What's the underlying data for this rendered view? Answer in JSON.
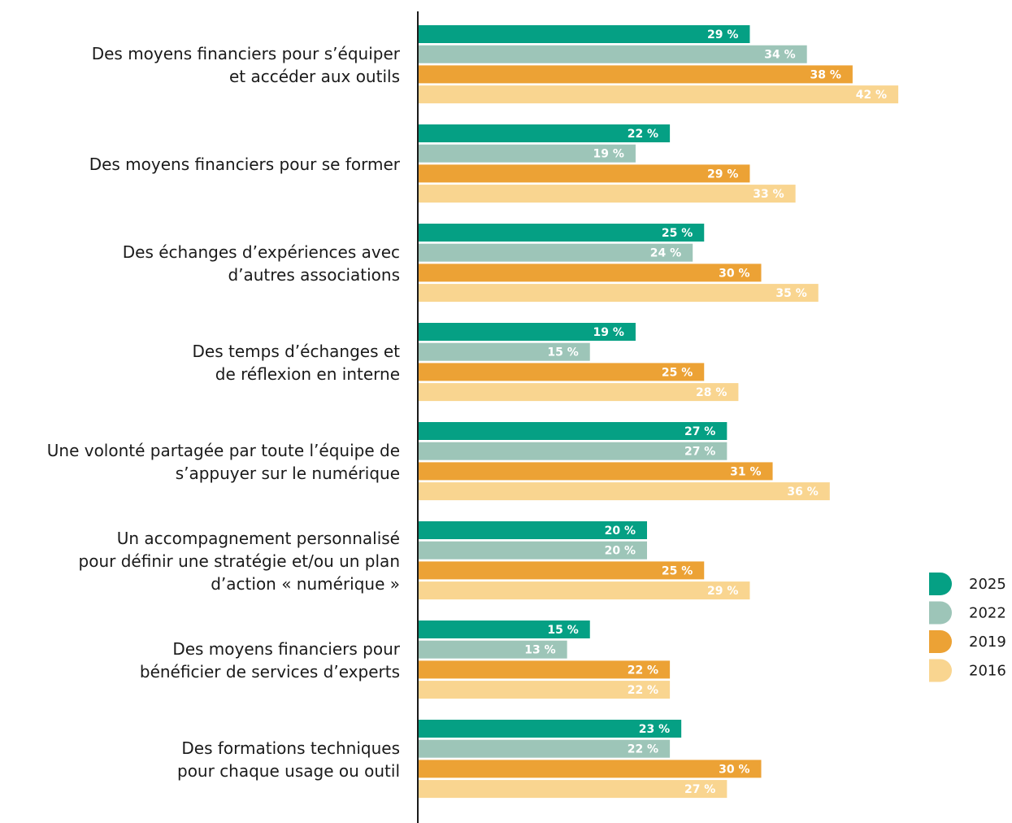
{
  "chart_data": {
    "type": "bar",
    "orientation": "horizontal",
    "categories": [
      "Des moyens financiers pour s’équiper\net accéder aux outils",
      "Des moyens financiers pour se former",
      "Des échanges d’expériences avec\nd’autres associations",
      "Des temps d’échanges et\nde réflexion en interne",
      "Une volonté partagée par toute l’équipe de\ns’appuyer sur le numérique",
      "Un accompagnement personnalisé\npour définir une stratégie et/ou un plan\nd’action « numérique »",
      "Des moyens financiers pour\nbénéficier de services d’experts",
      "Des formations techniques\npour chaque usage ou outil"
    ],
    "series": [
      {
        "name": "2025",
        "color": "#05a084",
        "values": [
          29,
          22,
          25,
          19,
          27,
          20,
          15,
          23
        ],
        "value_labels": [
          "29 %",
          "22 %",
          "25 %",
          "19 %",
          "27 %",
          "20 %",
          "15 %",
          "23 %"
        ]
      },
      {
        "name": "2022",
        "color": "#9dc5b8",
        "values": [
          34,
          19,
          24,
          15,
          27,
          20,
          13,
          22
        ],
        "value_labels": [
          "34 %",
          "19 %",
          "24 %",
          "15 %",
          "27 %",
          "20 %",
          "13 %",
          "22 %"
        ]
      },
      {
        "name": "2019",
        "color": "#eca235",
        "values": [
          38,
          29,
          30,
          25,
          31,
          25,
          22,
          30
        ],
        "value_labels": [
          "38 %",
          "29 %",
          "30 %",
          "25 %",
          "31 %",
          "25 %",
          "22 %",
          "30 %"
        ]
      },
      {
        "name": "2016",
        "color": "#f9d590",
        "values": [
          42,
          33,
          35,
          28,
          36,
          29,
          22,
          27
        ],
        "value_labels": [
          "42 %",
          "33 %",
          "35 %",
          "28 %",
          "36 %",
          "29 %",
          "22 %",
          "27 %"
        ]
      }
    ],
    "xlim": [
      0,
      45
    ],
    "legend": "right"
  }
}
